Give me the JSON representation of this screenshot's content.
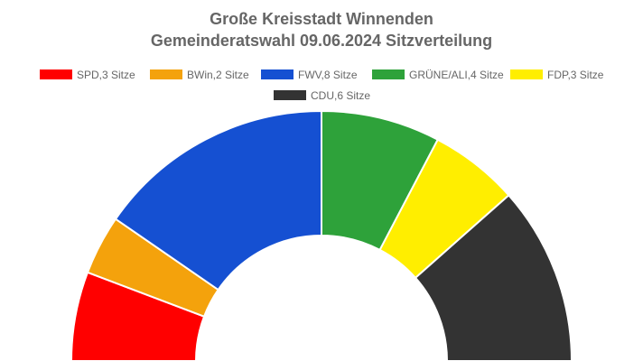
{
  "chart_data": {
    "type": "pie",
    "subtype": "parliament-half-donut",
    "title": "Große Kreisstadt Winnenden",
    "subtitle": "Gemeinderatswahl 09.06.2024 Sitzverteilung",
    "legend_position": "top-center",
    "series": [
      {
        "label": "SPD,3 Sitze",
        "value": 3,
        "color": "#ff0000"
      },
      {
        "label": "BWin,2 Sitze",
        "value": 2,
        "color": "#f4a20c"
      },
      {
        "label": "FWV,8 Sitze",
        "value": 8,
        "color": "#1550d2"
      },
      {
        "label": "GRÜNE/ALI,4 Sitze",
        "value": 4,
        "color": "#2ea23a"
      },
      {
        "label": "FDP,3 Sitze",
        "value": 3,
        "color": "#ffee00"
      },
      {
        "label": "CDU,6 Sitze",
        "value": 6,
        "color": "#333333"
      }
    ]
  }
}
